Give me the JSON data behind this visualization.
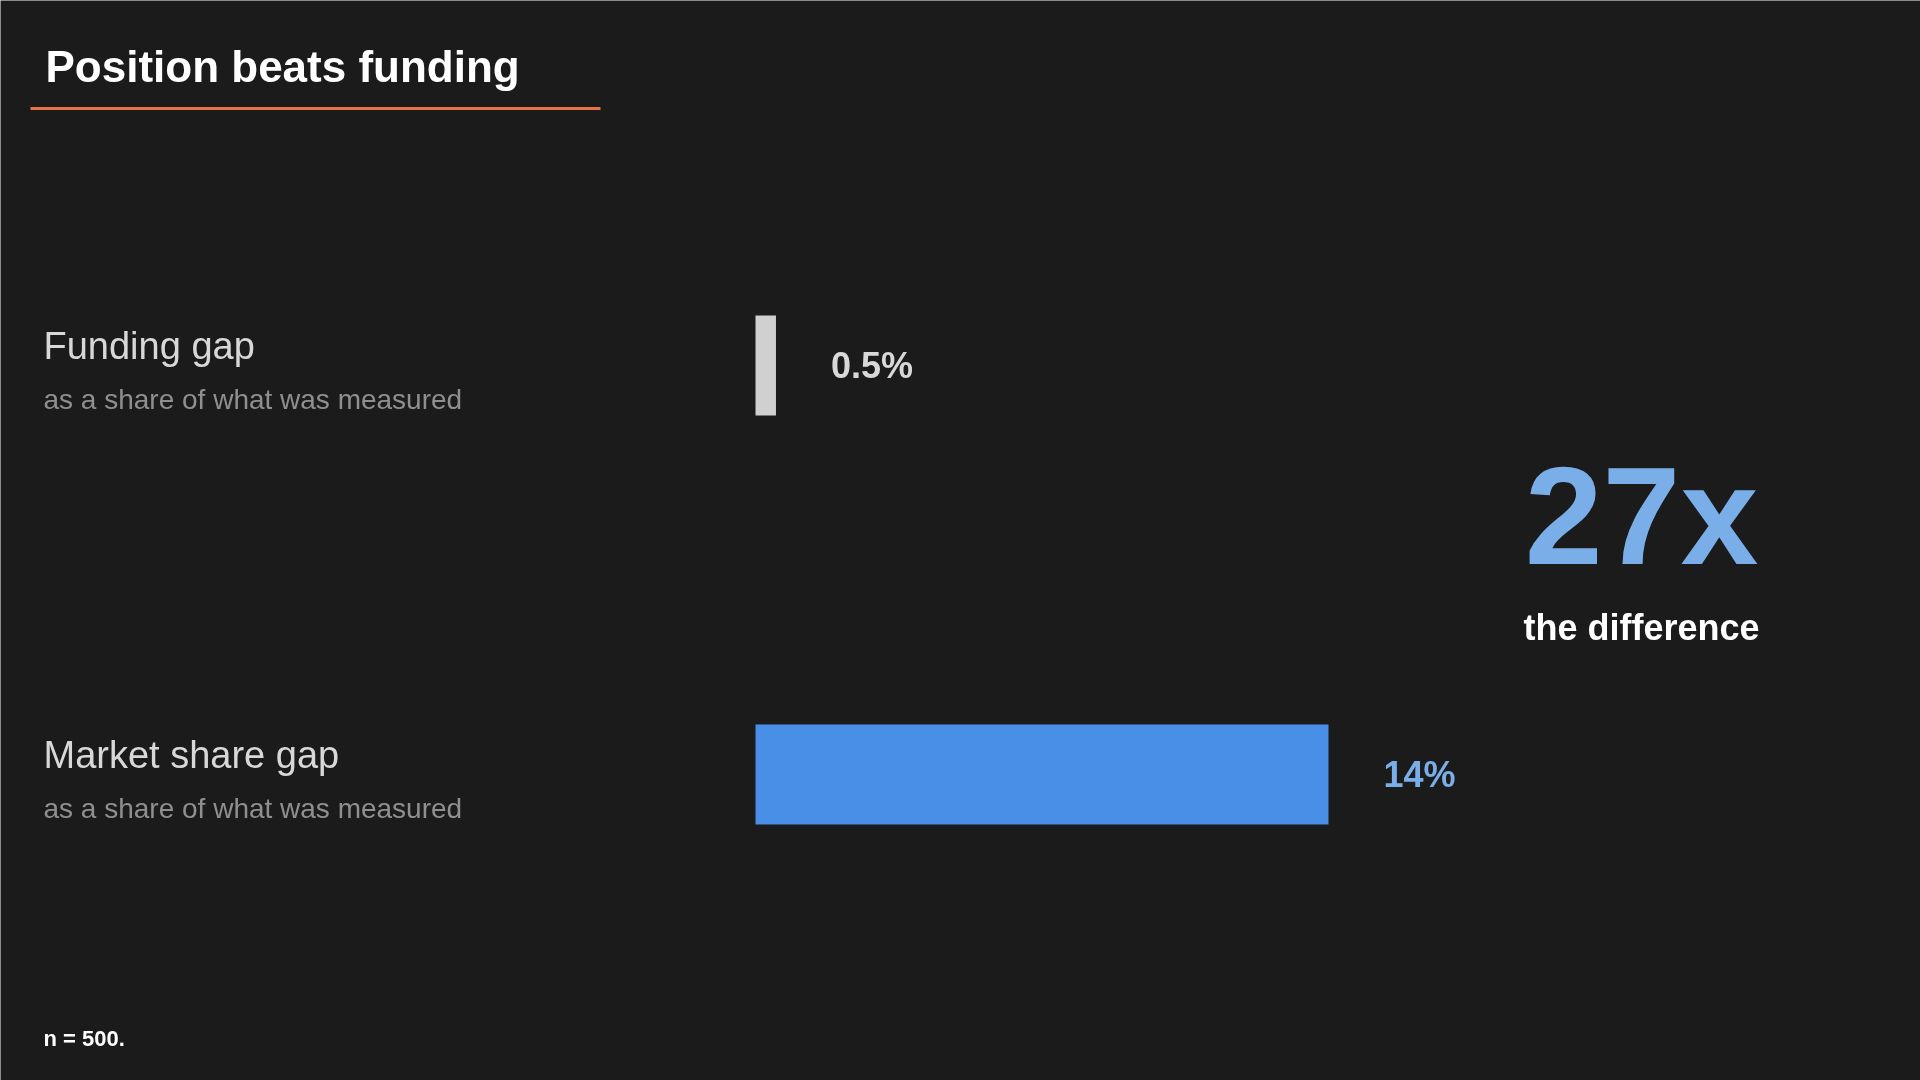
{
  "chart_data": {
    "type": "bar",
    "orientation": "horizontal",
    "title": "Position beats funding",
    "categories": [
      "Funding gap",
      "Market share gap"
    ],
    "values": [
      0.5,
      14
    ],
    "colors": [
      "#d0d0d0",
      "#4a8fe7"
    ],
    "value_labels": [
      "0.5%",
      "14%"
    ],
    "annotations": [
      "as a share of what was measured",
      "as a share of what was measured",
      "27x",
      "the difference",
      "n = 500."
    ],
    "grid": false
  }
}
